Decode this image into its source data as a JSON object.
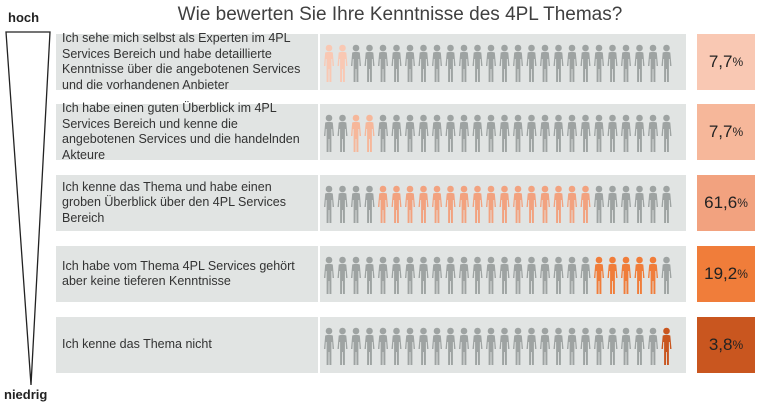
{
  "chart_data": {
    "type": "table",
    "title": "Wie bewerten Sie Ihre Kenntnisse des 4PL Themas?",
    "scale_top_label": "hoch",
    "scale_bottom_label": "niedrig",
    "rows": [
      {
        "label": "Ich sehe mich selbst als Experten im 4PL Services Bereich und habe detaillierte Kenntnisse über die angebotenen Services und die vorhandenen Anbieter",
        "value_text": "7,7",
        "value": 7.7,
        "unit": "%",
        "highlight_start": 0,
        "highlight_count": 2,
        "color": "#f9c8b3"
      },
      {
        "label": "Ich habe einen guten Überblick im 4PL Services Bereich und kenne die angebotenen Services und die handelnden Akteure",
        "value_text": "7,7",
        "value": 7.7,
        "unit": "%",
        "highlight_start": 2,
        "highlight_count": 2,
        "color": "#f6b79a"
      },
      {
        "label": "Ich kenne das Thema und habe einen groben Überblick über den 4PL Services Bereich",
        "value_text": "61,6",
        "value": 61.6,
        "unit": "%",
        "highlight_start": 4,
        "highlight_count": 16,
        "color": "#f2a27f"
      },
      {
        "label": "Ich habe vom Thema 4PL Services gehört aber keine tieferen Kenntnisse",
        "value_text": "19,2",
        "value": 19.2,
        "unit": "%",
        "highlight_start": 20,
        "highlight_count": 5,
        "color": "#f07d3a"
      },
      {
        "label": "Ich kenne das Thema nicht",
        "value_text": "3,8",
        "value": 3.8,
        "unit": "%",
        "highlight_start": 25,
        "highlight_count": 1,
        "color": "#c9561f"
      }
    ],
    "people_per_row": 26,
    "neutral_color": "#9ea3a2"
  }
}
